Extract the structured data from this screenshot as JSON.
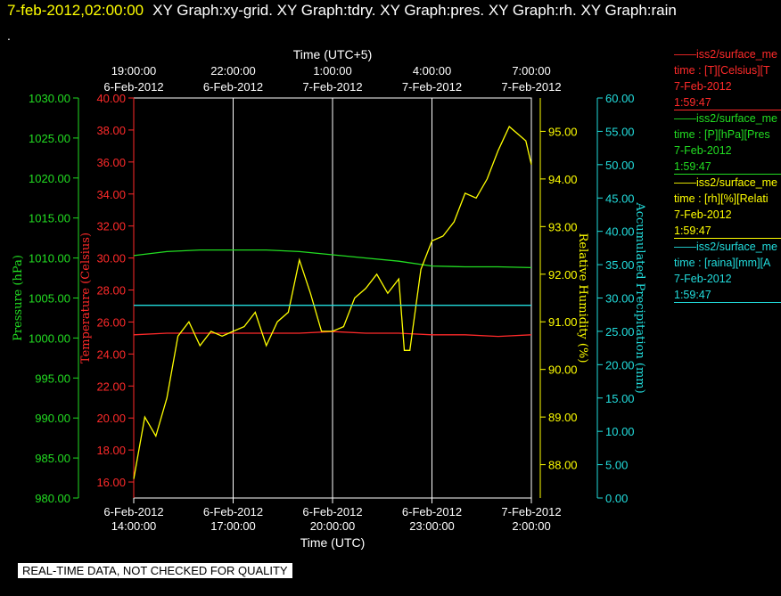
{
  "header": {
    "timestamp": "7-feb-2012,02:00:00",
    "titles": "XY Graph:xy-grid.  XY Graph:tdry.  XY Graph:pres.  XY Graph:rh.  XY Graph:rain",
    "dot": "."
  },
  "banner": "REAL-TIME DATA, NOT CHECKED FOR QUALITY",
  "colors": {
    "temperature": "#ff2a2a",
    "pressure": "#22dd22",
    "humidity": "#ffff00",
    "precipitation": "#22dddd",
    "grid": "#ffffff"
  },
  "legend": [
    {
      "name": "iss2/surface_me",
      "line2": "time : [T][Celsius][T",
      "date": "7-Feb-2012",
      "time": "1:59:47",
      "color": "#ff2a2a"
    },
    {
      "name": "iss2/surface_me",
      "line2": "time : [P][hPa][Pres",
      "date": "7-Feb-2012",
      "time": "1:59:47",
      "color": "#22dd22"
    },
    {
      "name": "iss2/surface_me",
      "line2": "time : [rh][%][Relati",
      "date": "7-Feb-2012",
      "time": "1:59:47",
      "color": "#ffff00"
    },
    {
      "name": "iss2/surface_me",
      "line2": "time : [raina][mm][A",
      "date": "7-Feb-2012",
      "time": "1:59:47",
      "color": "#22dddd"
    }
  ],
  "chart_data": {
    "type": "line",
    "grid": "vertical",
    "x_top": {
      "label": "Time (UTC+5)",
      "ticks": [
        {
          "time": "19:00:00",
          "date": "6-Feb-2012"
        },
        {
          "time": "22:00:00",
          "date": "6-Feb-2012"
        },
        {
          "time": "1:00:00",
          "date": "7-Feb-2012"
        },
        {
          "time": "4:00:00",
          "date": "7-Feb-2012"
        },
        {
          "time": "7:00:00",
          "date": "7-Feb-2012"
        }
      ]
    },
    "x_bottom": {
      "label": "Time (UTC)",
      "ticks": [
        {
          "date": "6-Feb-2012",
          "time": "14:00:00"
        },
        {
          "date": "6-Feb-2012",
          "time": "17:00:00"
        },
        {
          "date": "6-Feb-2012",
          "time": "20:00:00"
        },
        {
          "date": "6-Feb-2012",
          "time": "23:00:00"
        },
        {
          "date": "7-Feb-2012",
          "time": "2:00:00"
        }
      ]
    },
    "x_range": [
      "2012-02-06 14:00",
      "2012-02-07 02:00"
    ],
    "axes": {
      "pressure": {
        "label": "Pressure (hPa)",
        "ylim": [
          980,
          1030
        ],
        "ticks": [
          "980.00",
          "985.00",
          "990.00",
          "995.00",
          "1000.00",
          "1005.00",
          "1010.00",
          "1015.00",
          "1020.00",
          "1025.00",
          "1030.00"
        ]
      },
      "temperature": {
        "label": "Temperature (Celsius)",
        "ylim": [
          15,
          40
        ],
        "ticks": [
          "16.00",
          "18.00",
          "20.00",
          "22.00",
          "24.00",
          "26.00",
          "28.00",
          "30.00",
          "32.00",
          "34.00",
          "36.00",
          "38.00",
          "40.00"
        ]
      },
      "humidity": {
        "label": "Relative Humidity (%)",
        "ylim": [
          87.3,
          95.7
        ],
        "ticks": [
          "88.00",
          "89.00",
          "90.00",
          "91.00",
          "92.00",
          "93.00",
          "94.00",
          "95.00"
        ]
      },
      "precipitation": {
        "label": "Accumulated Precipitation (mm)",
        "ylim": [
          0,
          60
        ],
        "ticks": [
          "0.00",
          "5.00",
          "10.00",
          "15.00",
          "20.00",
          "25.00",
          "30.00",
          "35.00",
          "40.00",
          "45.00",
          "50.00",
          "55.00",
          "60.00"
        ]
      }
    },
    "series": [
      {
        "name": "temperature",
        "axis": "temperature",
        "x": [
          "14:00",
          "15:00",
          "16:00",
          "17:00",
          "18:00",
          "19:00",
          "20:00",
          "21:00",
          "22:00",
          "23:00",
          "00:00",
          "01:00",
          "02:00"
        ],
        "y": [
          25.2,
          25.3,
          25.3,
          25.3,
          25.3,
          25.3,
          25.4,
          25.3,
          25.3,
          25.2,
          25.2,
          25.1,
          25.2
        ]
      },
      {
        "name": "pressure",
        "axis": "pressure",
        "x": [
          "14:00",
          "15:00",
          "16:00",
          "17:00",
          "18:00",
          "19:00",
          "20:00",
          "21:00",
          "22:00",
          "23:00",
          "00:00",
          "01:00",
          "02:00"
        ],
        "y": [
          1010.3,
          1010.8,
          1011.0,
          1011.0,
          1011.0,
          1010.8,
          1010.4,
          1010.0,
          1009.6,
          1009.0,
          1008.9,
          1008.9,
          1008.8
        ]
      },
      {
        "name": "humidity",
        "axis": "humidity",
        "x": [
          "14:00",
          "14:20",
          "14:40",
          "15:00",
          "15:20",
          "15:40",
          "16:00",
          "16:20",
          "16:40",
          "17:00",
          "17:20",
          "17:40",
          "18:00",
          "18:20",
          "18:40",
          "19:00",
          "19:20",
          "19:40",
          "20:00",
          "20:20",
          "20:40",
          "21:00",
          "21:20",
          "21:40",
          "22:00",
          "22:10",
          "22:20",
          "22:40",
          "23:00",
          "23:20",
          "23:40",
          "00:00",
          "00:20",
          "00:40",
          "01:00",
          "01:20",
          "01:40",
          "01:50",
          "02:00"
        ],
        "y": [
          87.7,
          89.0,
          88.6,
          89.4,
          90.7,
          91.0,
          90.5,
          90.8,
          90.7,
          90.8,
          90.9,
          91.2,
          90.5,
          91.0,
          91.2,
          92.3,
          91.6,
          90.8,
          90.8,
          90.9,
          91.5,
          91.7,
          92.0,
          91.6,
          91.9,
          90.4,
          90.4,
          92.1,
          92.7,
          92.8,
          93.1,
          93.7,
          93.6,
          94.0,
          94.6,
          95.1,
          94.9,
          94.8,
          94.3
        ]
      },
      {
        "name": "precipitation",
        "axis": "precipitation",
        "x": [
          "14:00",
          "02:00"
        ],
        "y": [
          28.9,
          28.9
        ]
      }
    ]
  }
}
